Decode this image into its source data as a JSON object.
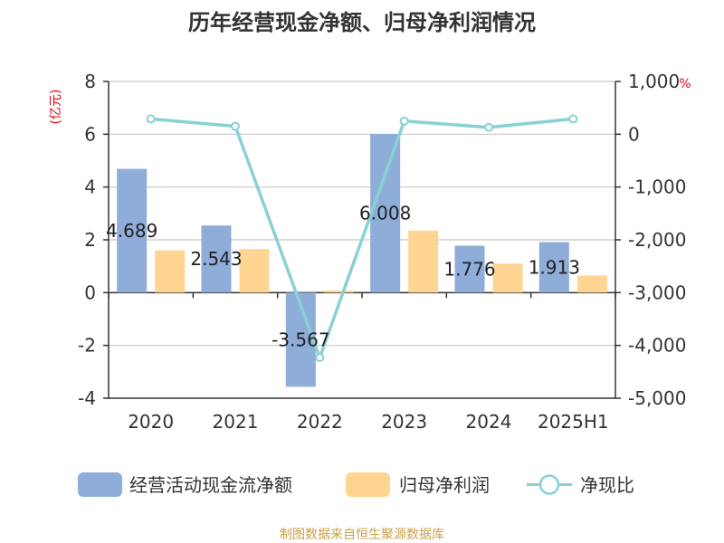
{
  "chart_data": {
    "type": "bar",
    "title": "历年经营现金净额、归母净利润情况",
    "categories": [
      "2020",
      "2021",
      "2022",
      "2023",
      "2024",
      "2025H1"
    ],
    "y_left": {
      "unit": "(亿元)",
      "range": [
        -4,
        8
      ],
      "ticks": [
        "8",
        "6",
        "4",
        "2",
        "0",
        "-2",
        "-4"
      ],
      "tick_values": [
        8,
        6,
        4,
        2,
        0,
        -2,
        -4
      ]
    },
    "y_right": {
      "unit": "%",
      "range": [
        -5000,
        1000
      ],
      "ticks": [
        "1,000",
        "0",
        "-1,000",
        "-2,000",
        "-3,000",
        "-4,000",
        "-5,000"
      ],
      "tick_values": [
        1000,
        0,
        -1000,
        -2000,
        -3000,
        -4000,
        -5000
      ]
    },
    "series": [
      {
        "name": "经营活动现金流净额",
        "type": "bar",
        "axis": "left",
        "color": "#8eadd9",
        "values": [
          4.689,
          2.543,
          -3.567,
          6.008,
          1.776,
          1.913
        ],
        "labels": [
          "4.689",
          "2.543",
          "-3.567",
          "6.008",
          "1.776",
          "1.913"
        ]
      },
      {
        "name": "归母净利润",
        "type": "bar",
        "axis": "left",
        "color": "#ffd591",
        "values": [
          1.6,
          1.65,
          0.08,
          2.35,
          1.1,
          0.65
        ]
      },
      {
        "name": "净现比",
        "type": "line",
        "axis": "right",
        "color": "#88d1d4",
        "values": [
          290,
          150,
          -4230,
          250,
          130,
          290
        ]
      }
    ],
    "grid": true,
    "legend_position": "bottom"
  },
  "footer": {
    "source": "制图数据来自恒生聚源数据库"
  }
}
